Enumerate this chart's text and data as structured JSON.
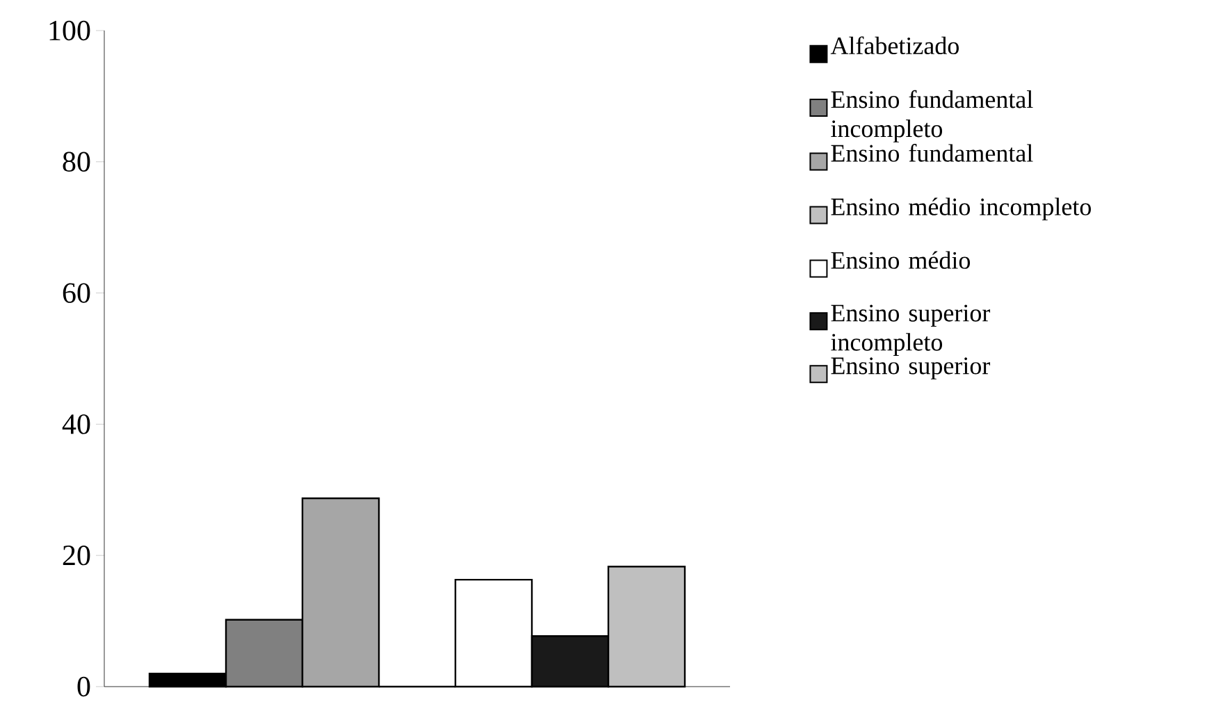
{
  "chart_data": {
    "type": "bar",
    "categories": [
      null
    ],
    "series": [
      {
        "name": "Alfabetizado",
        "color": "#000000",
        "values": [
          2
        ]
      },
      {
        "name": "Ensino fundamental incompleto",
        "color": "#808080",
        "values": [
          10.2
        ]
      },
      {
        "name": "Ensino fundamental",
        "color": "#a6a6a6",
        "values": [
          28.7
        ]
      },
      {
        "name": "Ensino médio incompleto",
        "color": "#c0c0c0",
        "values": [
          0
        ]
      },
      {
        "name": "Ensino médio",
        "color": "#ffffff",
        "values": [
          16.3
        ]
      },
      {
        "name": "Ensino superior incompleto",
        "color": "#1a1a1a",
        "values": [
          7.7
        ]
      },
      {
        "name": "Ensino superior",
        "color": "#bfbfbf",
        "values": [
          18.3
        ]
      }
    ],
    "ylim": [
      0,
      100
    ],
    "yticks": [
      0,
      20,
      40,
      60,
      80,
      100
    ],
    "grid": false,
    "legend": "right"
  }
}
